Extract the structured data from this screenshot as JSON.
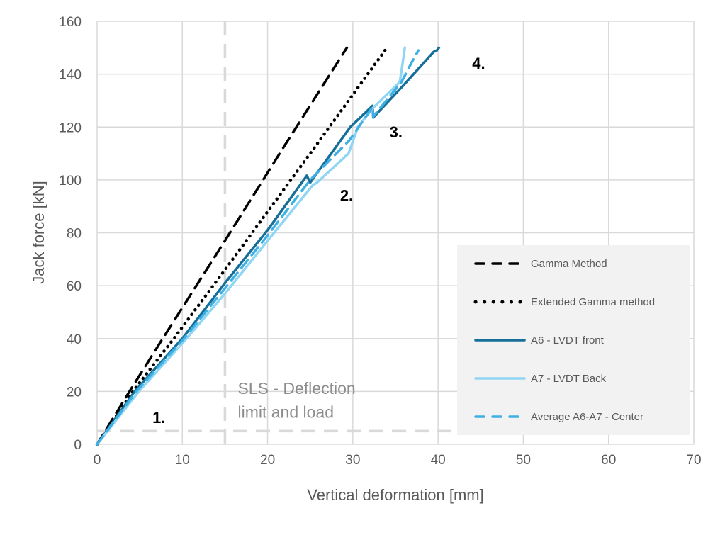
{
  "chart_data": {
    "type": "line",
    "title": "",
    "xlabel": "Vertical deformation [mm]",
    "ylabel": "Jack force [kN]",
    "xlim": [
      0,
      70
    ],
    "ylim": [
      0,
      160
    ],
    "xticks": [
      0,
      10,
      20,
      30,
      40,
      50,
      60,
      70
    ],
    "yticks": [
      0,
      20,
      40,
      60,
      80,
      100,
      120,
      140,
      160
    ],
    "grid": true,
    "legend_position": "bottom-right",
    "series": [
      {
        "name": "Gamma Method",
        "color": "#000000",
        "style": "dashed",
        "x": [
          0,
          3.8,
          7.7,
          15,
          22,
          29.3
        ],
        "y": [
          0,
          20,
          40,
          77,
          113,
          150
        ]
      },
      {
        "name": "Extended Gamma method",
        "color": "#000000",
        "style": "dotted",
        "x": [
          0,
          4.2,
          9.0,
          15,
          25,
          34.0
        ],
        "y": [
          0,
          20,
          40,
          66,
          110,
          150
        ]
      },
      {
        "name": "A6 - LVDT front",
        "color": "#156f99",
        "style": "solid",
        "x": [
          0,
          4.4,
          10.0,
          15,
          20,
          24.6,
          25.0,
          29.7,
          32.3,
          32.4,
          36,
          39.5,
          39.8,
          40.1
        ],
        "y": [
          0,
          20,
          40,
          61,
          81,
          101.6,
          99,
          120,
          128,
          123.6,
          136,
          148.5,
          148.8,
          150
        ]
      },
      {
        "name": "A7 - LVDT Back",
        "color": "#8fd6f5",
        "style": "solid",
        "x": [
          0,
          4.9,
          10.5,
          15,
          20,
          25.3,
          25.8,
          29.5,
          30.6,
          32.3,
          35.5,
          35.7,
          36.1
        ],
        "y": [
          0,
          20,
          40,
          57,
          77,
          98,
          99,
          110,
          120,
          127,
          137,
          141,
          150
        ]
      },
      {
        "name": "Average A6-A7 - Center",
        "color": "#3fb0e3",
        "style": "dashed",
        "x": [
          0,
          4.6,
          10.2,
          15,
          20,
          25,
          29.6,
          32.3,
          32.4,
          35.7,
          37.0,
          37.7
        ],
        "y": [
          0,
          20,
          40,
          59,
          79,
          100,
          115,
          127.5,
          124,
          137,
          145,
          149
        ]
      }
    ],
    "reference_lines": [
      {
        "orientation": "vertical",
        "value": 15,
        "color": "#d9d9d9",
        "style": "dashed"
      },
      {
        "orientation": "horizontal",
        "value": 5,
        "color": "#d9d9d9",
        "style": "dashed"
      }
    ],
    "annotations": [
      {
        "text": "1.",
        "x": 6.5,
        "y": 8
      },
      {
        "text": "2.",
        "x": 28.5,
        "y": 92
      },
      {
        "text": "3.",
        "x": 34.3,
        "y": 116
      },
      {
        "text": "4.",
        "x": 44,
        "y": 142
      },
      {
        "text": "SLS - Deflection",
        "x": 16.5,
        "y": 19
      },
      {
        "text": "limit and load",
        "x": 16.5,
        "y": 10
      }
    ]
  }
}
